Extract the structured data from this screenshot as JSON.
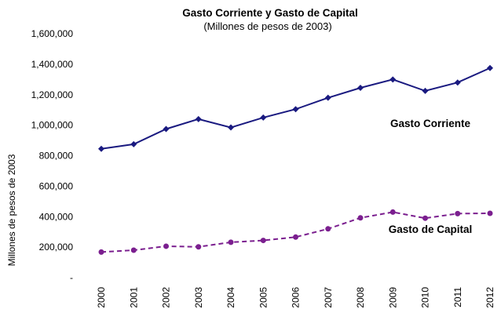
{
  "chart_data": {
    "type": "line",
    "title": "Gasto Corriente y Gasto de Capital",
    "subtitle": "(Millones de pesos de 2003)",
    "ylabel": "Millones de pesos de 2003",
    "xlabel": "",
    "ylim": [
      0,
      1600000
    ],
    "yticks": [
      0,
      200000,
      400000,
      600000,
      800000,
      1000000,
      1200000,
      1400000,
      1600000
    ],
    "ytick_labels": [
      "-",
      "200,000",
      "400,000",
      "600,000",
      "800,000",
      "1,000,000",
      "1,200,000",
      "1,400,000",
      "1,600,000"
    ],
    "categories": [
      "2000",
      "2001",
      "2002",
      "2003",
      "2004",
      "2005",
      "2006",
      "2007",
      "2008",
      "2009",
      "2010",
      "2011",
      "2012"
    ],
    "grid": false,
    "legend": "none",
    "series": [
      {
        "name": "Gasto Corriente",
        "color": "#1a1a80",
        "line_style": "solid",
        "marker": "diamond",
        "values": [
          845000,
          875000,
          975000,
          1040000,
          985000,
          1050000,
          1105000,
          1180000,
          1245000,
          1300000,
          1225000,
          1280000,
          1375000
        ]
      },
      {
        "name": "Gasto de Capital",
        "color": "#7b1f8f",
        "line_style": "dashed",
        "marker": "circle",
        "values": [
          168000,
          180000,
          206000,
          202000,
          232000,
          244000,
          266000,
          320000,
          392000,
          430000,
          390000,
          420000,
          422000
        ]
      }
    ]
  }
}
